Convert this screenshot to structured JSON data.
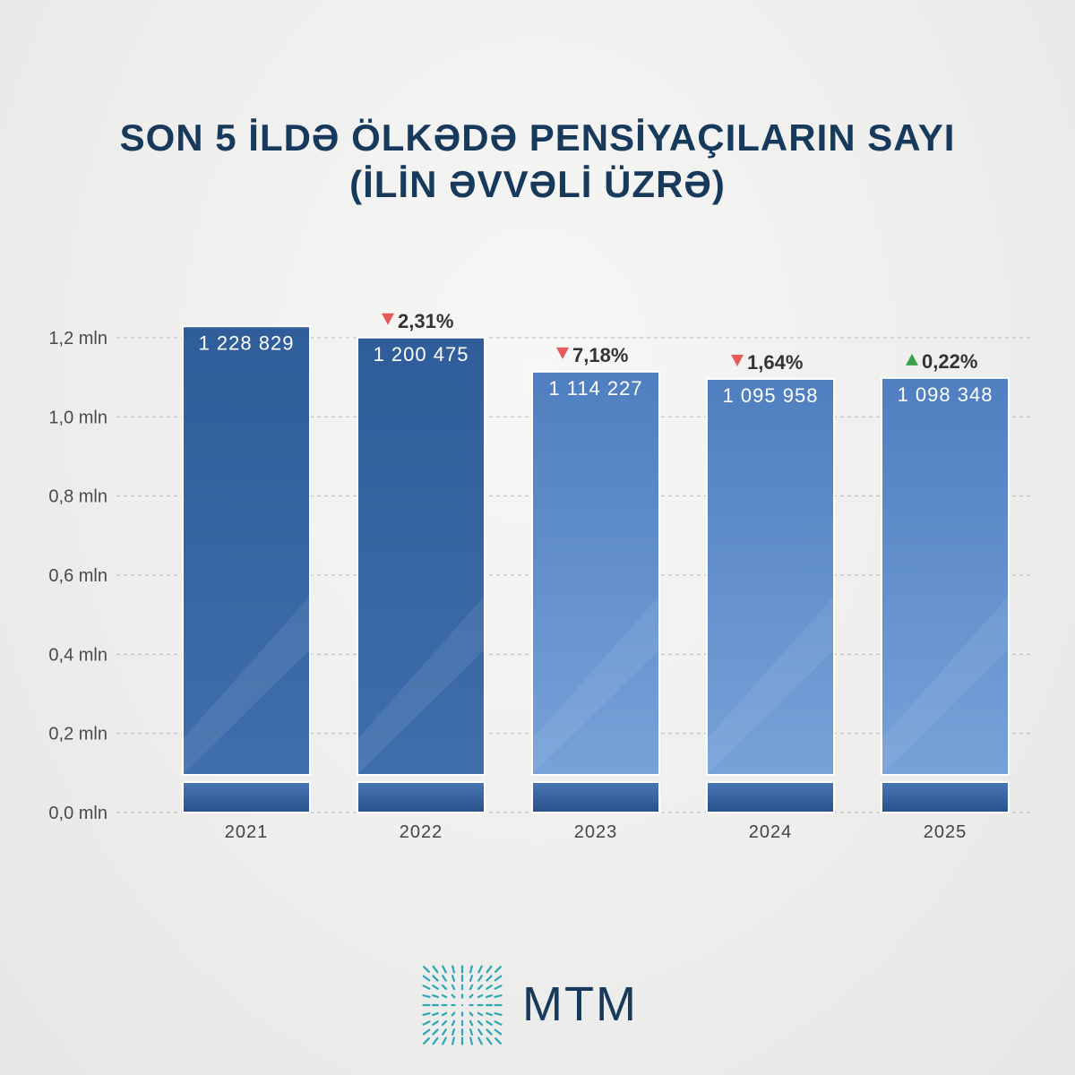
{
  "title": {
    "line1": "SON 5 İLDƏ ÖLKƏDƏ PENSİYAÇILARIN SAYI",
    "line2": "(İLİN ƏVVƏLİ ÜZRƏ)"
  },
  "logo": {
    "text": "MTM"
  },
  "colors": {
    "bar_dark": "#2c5a97",
    "bar_light": "#6f9ad2",
    "title": "#173a5c",
    "down": "#e85a5a",
    "up": "#3aa04a"
  },
  "chart_data": {
    "type": "bar",
    "categories": [
      "2021",
      "2022",
      "2023",
      "2024",
      "2025"
    ],
    "values": [
      1228829,
      1200475,
      1114227,
      1095958,
      1098348
    ],
    "value_labels": [
      "1 228 829",
      "1 200 475",
      "1 114 227",
      "1 095 958",
      "1 098 348"
    ],
    "changes": [
      null,
      {
        "direction": "down",
        "label": "2,31%"
      },
      {
        "direction": "down",
        "label": "7,18%"
      },
      {
        "direction": "down",
        "label": "1,64%"
      },
      {
        "direction": "up",
        "label": "0,22%"
      }
    ],
    "y_ticks": [
      0,
      0.2,
      0.4,
      0.6,
      0.8,
      1.0,
      1.2
    ],
    "y_tick_labels": [
      "0,0 mln",
      "0,2 mln",
      "0,4 mln",
      "0,6 mln",
      "0,8 mln",
      "1,0 mln",
      "1,2 mln"
    ],
    "ylim": [
      0,
      1.2
    ],
    "unit_scale": 1000000,
    "grid": true,
    "axis_break": true
  }
}
